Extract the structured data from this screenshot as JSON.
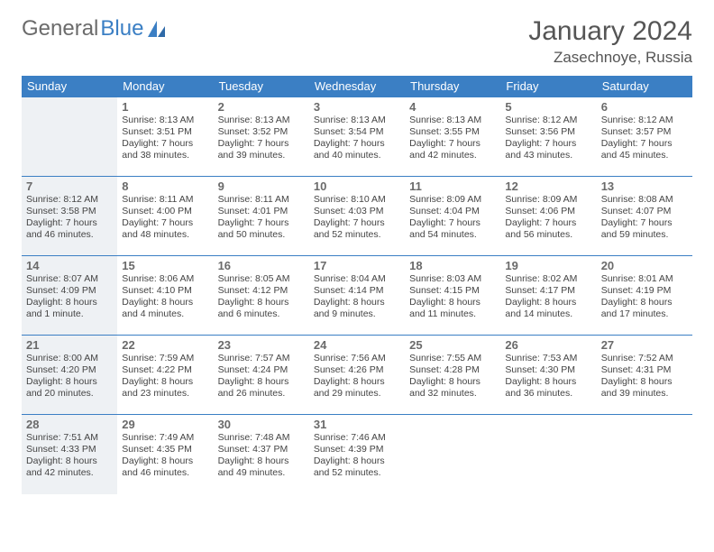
{
  "brand": {
    "part1": "General",
    "part2": "Blue"
  },
  "title": "January 2024",
  "location": "Zasechnoye, Russia",
  "colors": {
    "header_bg": "#3b7fc4",
    "header_fg": "#ffffff",
    "rule": "#3b7fc4",
    "alt_bg": "#eef1f4",
    "text": "#444444",
    "daynum": "#6a6a6a",
    "title": "#555555",
    "logo_gray": "#6b6b6b",
    "logo_blue": "#3b7fc4"
  },
  "columns": [
    "Sunday",
    "Monday",
    "Tuesday",
    "Wednesday",
    "Thursday",
    "Friday",
    "Saturday"
  ],
  "weeks": [
    [
      null,
      {
        "n": "1",
        "sr": "8:13 AM",
        "ss": "3:51 PM",
        "dl": "7 hours and 38 minutes."
      },
      {
        "n": "2",
        "sr": "8:13 AM",
        "ss": "3:52 PM",
        "dl": "7 hours and 39 minutes."
      },
      {
        "n": "3",
        "sr": "8:13 AM",
        "ss": "3:54 PM",
        "dl": "7 hours and 40 minutes."
      },
      {
        "n": "4",
        "sr": "8:13 AM",
        "ss": "3:55 PM",
        "dl": "7 hours and 42 minutes."
      },
      {
        "n": "5",
        "sr": "8:12 AM",
        "ss": "3:56 PM",
        "dl": "7 hours and 43 minutes."
      },
      {
        "n": "6",
        "sr": "8:12 AM",
        "ss": "3:57 PM",
        "dl": "7 hours and 45 minutes."
      }
    ],
    [
      {
        "n": "7",
        "sr": "8:12 AM",
        "ss": "3:58 PM",
        "dl": "7 hours and 46 minutes."
      },
      {
        "n": "8",
        "sr": "8:11 AM",
        "ss": "4:00 PM",
        "dl": "7 hours and 48 minutes."
      },
      {
        "n": "9",
        "sr": "8:11 AM",
        "ss": "4:01 PM",
        "dl": "7 hours and 50 minutes."
      },
      {
        "n": "10",
        "sr": "8:10 AM",
        "ss": "4:03 PM",
        "dl": "7 hours and 52 minutes."
      },
      {
        "n": "11",
        "sr": "8:09 AM",
        "ss": "4:04 PM",
        "dl": "7 hours and 54 minutes."
      },
      {
        "n": "12",
        "sr": "8:09 AM",
        "ss": "4:06 PM",
        "dl": "7 hours and 56 minutes."
      },
      {
        "n": "13",
        "sr": "8:08 AM",
        "ss": "4:07 PM",
        "dl": "7 hours and 59 minutes."
      }
    ],
    [
      {
        "n": "14",
        "sr": "8:07 AM",
        "ss": "4:09 PM",
        "dl": "8 hours and 1 minute."
      },
      {
        "n": "15",
        "sr": "8:06 AM",
        "ss": "4:10 PM",
        "dl": "8 hours and 4 minutes."
      },
      {
        "n": "16",
        "sr": "8:05 AM",
        "ss": "4:12 PM",
        "dl": "8 hours and 6 minutes."
      },
      {
        "n": "17",
        "sr": "8:04 AM",
        "ss": "4:14 PM",
        "dl": "8 hours and 9 minutes."
      },
      {
        "n": "18",
        "sr": "8:03 AM",
        "ss": "4:15 PM",
        "dl": "8 hours and 11 minutes."
      },
      {
        "n": "19",
        "sr": "8:02 AM",
        "ss": "4:17 PM",
        "dl": "8 hours and 14 minutes."
      },
      {
        "n": "20",
        "sr": "8:01 AM",
        "ss": "4:19 PM",
        "dl": "8 hours and 17 minutes."
      }
    ],
    [
      {
        "n": "21",
        "sr": "8:00 AM",
        "ss": "4:20 PM",
        "dl": "8 hours and 20 minutes."
      },
      {
        "n": "22",
        "sr": "7:59 AM",
        "ss": "4:22 PM",
        "dl": "8 hours and 23 minutes."
      },
      {
        "n": "23",
        "sr": "7:57 AM",
        "ss": "4:24 PM",
        "dl": "8 hours and 26 minutes."
      },
      {
        "n": "24",
        "sr": "7:56 AM",
        "ss": "4:26 PM",
        "dl": "8 hours and 29 minutes."
      },
      {
        "n": "25",
        "sr": "7:55 AM",
        "ss": "4:28 PM",
        "dl": "8 hours and 32 minutes."
      },
      {
        "n": "26",
        "sr": "7:53 AM",
        "ss": "4:30 PM",
        "dl": "8 hours and 36 minutes."
      },
      {
        "n": "27",
        "sr": "7:52 AM",
        "ss": "4:31 PM",
        "dl": "8 hours and 39 minutes."
      }
    ],
    [
      {
        "n": "28",
        "sr": "7:51 AM",
        "ss": "4:33 PM",
        "dl": "8 hours and 42 minutes."
      },
      {
        "n": "29",
        "sr": "7:49 AM",
        "ss": "4:35 PM",
        "dl": "8 hours and 46 minutes."
      },
      {
        "n": "30",
        "sr": "7:48 AM",
        "ss": "4:37 PM",
        "dl": "8 hours and 49 minutes."
      },
      {
        "n": "31",
        "sr": "7:46 AM",
        "ss": "4:39 PM",
        "dl": "8 hours and 52 minutes."
      },
      null,
      null,
      null
    ]
  ],
  "labels": {
    "sunrise": "Sunrise:",
    "sunset": "Sunset:",
    "daylight": "Daylight:"
  }
}
